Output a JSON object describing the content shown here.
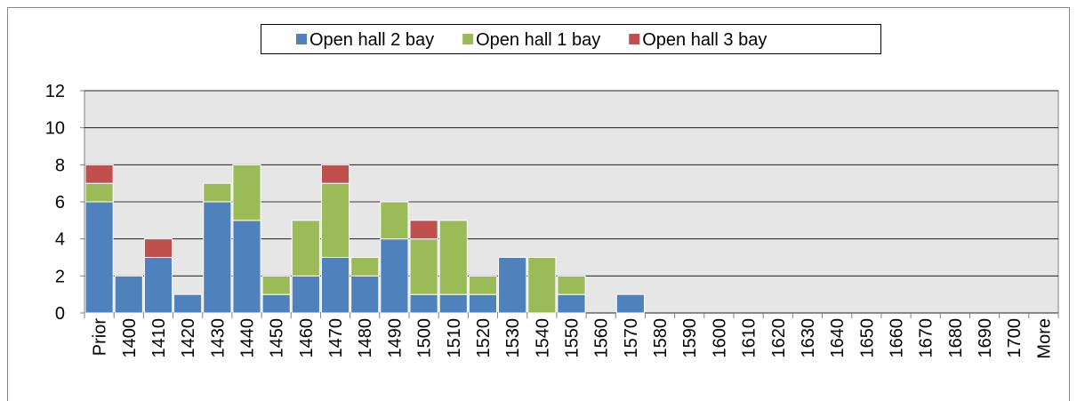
{
  "chart_data": {
    "type": "bar",
    "stacked": true,
    "categories": [
      "Prior",
      "1400",
      "1410",
      "1420",
      "1430",
      "1440",
      "1450",
      "1460",
      "1470",
      "1480",
      "1490",
      "1500",
      "1510",
      "1520",
      "1530",
      "1540",
      "1550",
      "1560",
      "1570",
      "1580",
      "1590",
      "1600",
      "1610",
      "1620",
      "1630",
      "1640",
      "1650",
      "1660",
      "1670",
      "1680",
      "1690",
      "1700",
      "More"
    ],
    "series": [
      {
        "name": "Open hall 2 bay",
        "color": "#4f81bd",
        "values": [
          6,
          2,
          3,
          1,
          6,
          5,
          1,
          2,
          3,
          2,
          4,
          1,
          1,
          1,
          3,
          0,
          1,
          0,
          1,
          0,
          0,
          0,
          0,
          0,
          0,
          0,
          0,
          0,
          0,
          0,
          0,
          0,
          0
        ]
      },
      {
        "name": "Open hall 1 bay",
        "color": "#9bbb59",
        "values": [
          1,
          0,
          0,
          0,
          1,
          3,
          1,
          3,
          4,
          1,
          2,
          3,
          4,
          1,
          0,
          3,
          1,
          0,
          0,
          0,
          0,
          0,
          0,
          0,
          0,
          0,
          0,
          0,
          0,
          0,
          0,
          0,
          0
        ]
      },
      {
        "name": "Open hall 3 bay",
        "color": "#c0504d",
        "values": [
          1,
          0,
          1,
          0,
          0,
          0,
          0,
          0,
          1,
          0,
          0,
          1,
          0,
          0,
          0,
          0,
          0,
          0,
          0,
          0,
          0,
          0,
          0,
          0,
          0,
          0,
          0,
          0,
          0,
          0,
          0,
          0,
          0
        ]
      }
    ],
    "ylim": [
      0,
      12
    ],
    "yticks": [
      0,
      2,
      4,
      6,
      8,
      10,
      12
    ],
    "grid": true,
    "legend": "top"
  }
}
